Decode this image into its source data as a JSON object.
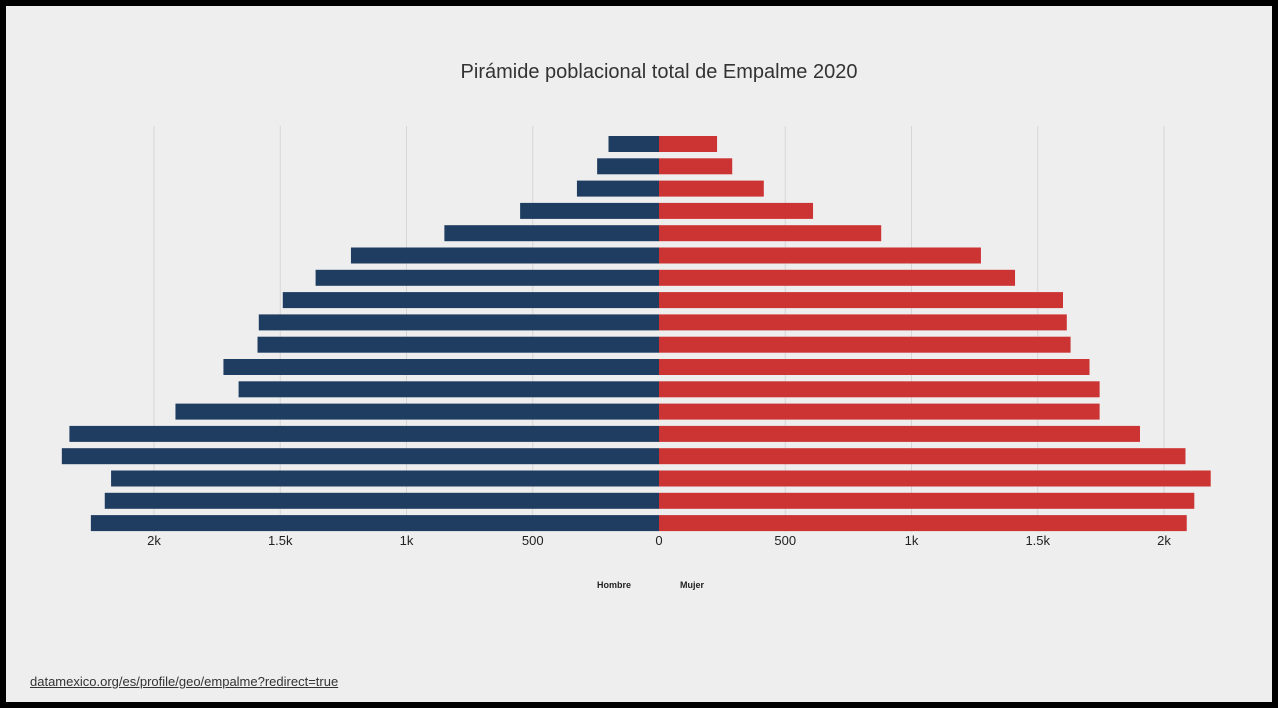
{
  "chart_data": {
    "type": "bar",
    "orientation": "horizontal",
    "layout": "population-pyramid",
    "title": "Pirámide poblacional total de Empalme 2020",
    "xlim": [
      -2350,
      2200
    ],
    "x_tick_values": [
      -2000,
      -1500,
      -1000,
      -500,
      0,
      500,
      1000,
      1500,
      2000
    ],
    "x_tick_labels": [
      "2k",
      "1.5k",
      "1k",
      "500",
      "0",
      "500",
      "1k",
      "1.5k",
      "2k"
    ],
    "grid": "vertical",
    "legend_position": "bottom-center",
    "series": [
      {
        "name": "Hombre",
        "color": "#1f3c61",
        "side": "left",
        "values": [
          200,
          245,
          325,
          550,
          850,
          1220,
          1360,
          1490,
          1585,
          1590,
          1725,
          1665,
          1915,
          2335,
          2365,
          2170,
          2195,
          2250
        ]
      },
      {
        "name": "Mujer",
        "color": "#cc3333",
        "side": "right",
        "values": [
          230,
          290,
          415,
          610,
          880,
          1275,
          1410,
          1600,
          1615,
          1630,
          1705,
          1745,
          1745,
          1905,
          2085,
          2185,
          2120,
          2090
        ]
      }
    ]
  },
  "source": {
    "link_text": "datamexico.org/es/profile/geo/empalme?redirect=true"
  }
}
